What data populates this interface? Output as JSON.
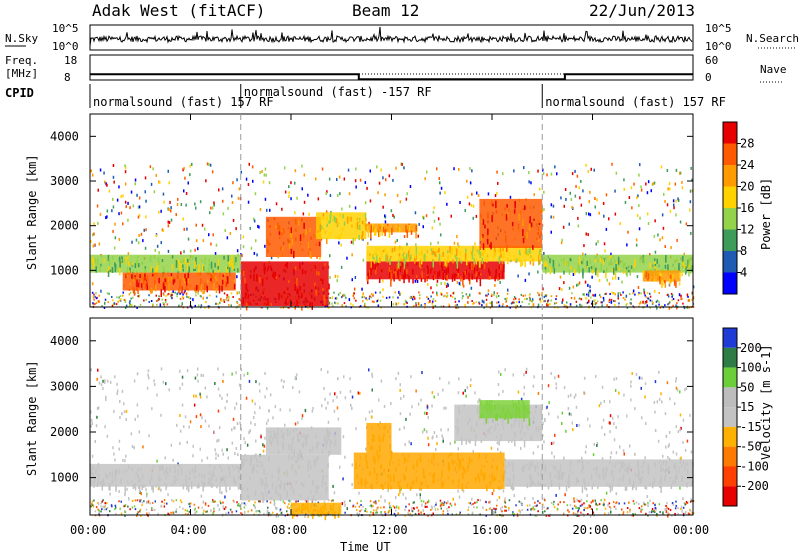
{
  "header": {
    "site": "Adak West (fitACF)",
    "beam": "Beam 12",
    "date": "22/Jun/2013"
  },
  "nsky_panel": {
    "left_label": "N.Sky",
    "right_label": "N.Search",
    "ticks": [
      "10^5",
      "10^0"
    ],
    "right_ticks": [
      "10^5",
      "10^0"
    ]
  },
  "freq_panel": {
    "left_label_1": "Freq.",
    "left_label_2": "[MHz]",
    "ticks": [
      "18",
      "8"
    ],
    "right_label": "Nave",
    "right_ticks": [
      "60",
      "0"
    ],
    "freq_levels_MHz": [
      {
        "start_hour": 0,
        "end_hour": 10.7,
        "value": 11.5
      },
      {
        "start_hour": 10.7,
        "end_hour": 18.9,
        "value": 9.5
      },
      {
        "start_hour": 18.9,
        "end_hour": 24,
        "value": 11.5
      }
    ]
  },
  "cpid": {
    "label": "CPID",
    "segments": [
      {
        "text": "normalsound (fast) 157 RF",
        "start_hour": 0
      },
      {
        "text": "normalsound (fast) -157 RF",
        "start_hour": 6
      },
      {
        "text": "normalsound (fast) 157 RF",
        "start_hour": 18
      }
    ]
  },
  "chart_data": [
    {
      "type": "heatmap",
      "name": "power",
      "ylabel": "Slant Range [km]",
      "ylim": [
        180,
        4500
      ],
      "yticks": [
        "1000",
        "2000",
        "3000",
        "4000"
      ],
      "xlim": [
        0,
        24
      ],
      "colorbar_label": "Power [dB]",
      "colorbar_ticks": [
        "28",
        "24",
        "20",
        "16",
        "12",
        "8",
        "4"
      ],
      "colorbar_colors": [
        "#e60000",
        "#ff5a00",
        "#ff9a00",
        "#ffd200",
        "#94d24a",
        "#3d9c5a",
        "#1f5ab4",
        "#0000ff"
      ],
      "bands": [
        {
          "t0": 0.0,
          "t1": 6.0,
          "r0": 950,
          "r1": 1350,
          "level": 3
        },
        {
          "t0": 1.3,
          "t1": 5.8,
          "r0": 550,
          "r1": 950,
          "level": 6
        },
        {
          "t0": 6.0,
          "t1": 9.5,
          "r0": 200,
          "r1": 1200,
          "level": 7
        },
        {
          "t0": 7.0,
          "t1": 9.2,
          "r0": 1300,
          "r1": 2200,
          "level": 6
        },
        {
          "t0": 9.0,
          "t1": 11.0,
          "r0": 1700,
          "r1": 2300,
          "level": 4
        },
        {
          "t0": 11.0,
          "t1": 16.5,
          "r0": 800,
          "r1": 1200,
          "level": 7
        },
        {
          "t0": 11.0,
          "t1": 18.0,
          "r0": 1200,
          "r1": 1550,
          "level": 4
        },
        {
          "t0": 11.0,
          "t1": 13.0,
          "r0": 1850,
          "r1": 2050,
          "level": 5
        },
        {
          "t0": 15.5,
          "t1": 18.0,
          "r0": 1500,
          "r1": 2600,
          "level": 6
        },
        {
          "t0": 18.0,
          "t1": 24.0,
          "r0": 950,
          "r1": 1350,
          "level": 3
        },
        {
          "t0": 22.0,
          "t1": 23.5,
          "r0": 750,
          "r1": 1000,
          "level": 5
        }
      ]
    },
    {
      "type": "heatmap",
      "name": "velocity",
      "ylabel": "Slant Range [km]",
      "ylim": [
        180,
        4500
      ],
      "yticks": [
        "1000",
        "2000",
        "3000",
        "4000"
      ],
      "xlim": [
        0,
        24
      ],
      "xticks": [
        "00:00",
        "04:00",
        "08:00",
        "12:00",
        "16:00",
        "20:00",
        "00:00"
      ],
      "xlabel": "Time UT",
      "colorbar_label": "Velocity [m s-1]",
      "colorbar_ticks": [
        "200",
        "100",
        "50",
        "15",
        "-15",
        "-50",
        "-100",
        "-200"
      ],
      "colorbar_colors": [
        "#1f3bd6",
        "#2f7d46",
        "#6ccf3a",
        "#bdbdbd",
        "#c3c3c3",
        "#ffb000",
        "#ff7a00",
        "#ff4000",
        "#e60000"
      ],
      "bands": [
        {
          "t0": 0.0,
          "t1": 6.0,
          "r0": 800,
          "r1": 1300,
          "color": "#c3c3c3"
        },
        {
          "t0": 6.0,
          "t1": 9.5,
          "r0": 500,
          "r1": 1500,
          "color": "#c3c3c3"
        },
        {
          "t0": 7.0,
          "t1": 10.0,
          "r0": 1500,
          "r1": 2100,
          "color": "#c3c3c3"
        },
        {
          "t0": 8.0,
          "t1": 10.0,
          "r0": 200,
          "r1": 450,
          "color": "#ffb000"
        },
        {
          "t0": 10.5,
          "t1": 16.5,
          "r0": 750,
          "r1": 1550,
          "color": "#ffa800"
        },
        {
          "t0": 11.0,
          "t1": 12.0,
          "r0": 1550,
          "r1": 2200,
          "color": "#ffa800"
        },
        {
          "t0": 14.5,
          "t1": 18.0,
          "r0": 1800,
          "r1": 2600,
          "color": "#c3c3c3"
        },
        {
          "t0": 15.5,
          "t1": 17.5,
          "r0": 2300,
          "r1": 2700,
          "color": "#7fd23c"
        },
        {
          "t0": 16.5,
          "t1": 24.0,
          "r0": 800,
          "r1": 1400,
          "color": "#c3c3c3"
        }
      ]
    }
  ]
}
